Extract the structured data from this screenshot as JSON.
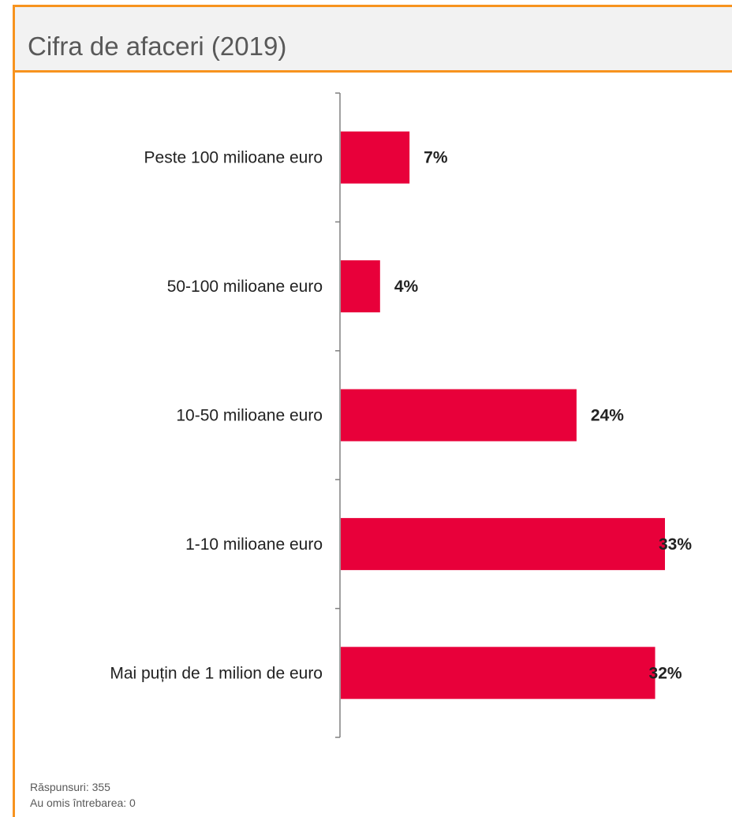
{
  "panel": {
    "title": "Cifra de afaceri (2019)"
  },
  "footer": {
    "responses": "Răspunsuri: 355",
    "skipped": "Au omis întrebarea: 0"
  },
  "colors": {
    "bar": "#e8003a",
    "accent_border": "#f7931e",
    "axis": "#808080",
    "label_text": "#222222"
  },
  "chart_data": {
    "type": "bar",
    "orientation": "horizontal",
    "categories": [
      "Peste 100 milioane euro",
      "50-100 milioane euro",
      "10-50 milioane euro",
      "1-10 milioane euro",
      "Mai puțin de 1 milion de euro"
    ],
    "values": [
      7,
      4,
      24,
      33,
      32
    ],
    "value_labels": [
      "7%",
      "4%",
      "24%",
      "33%",
      "32%"
    ],
    "unit": "%",
    "xlim": [
      0,
      33
    ],
    "grid": false,
    "legend": "none"
  }
}
